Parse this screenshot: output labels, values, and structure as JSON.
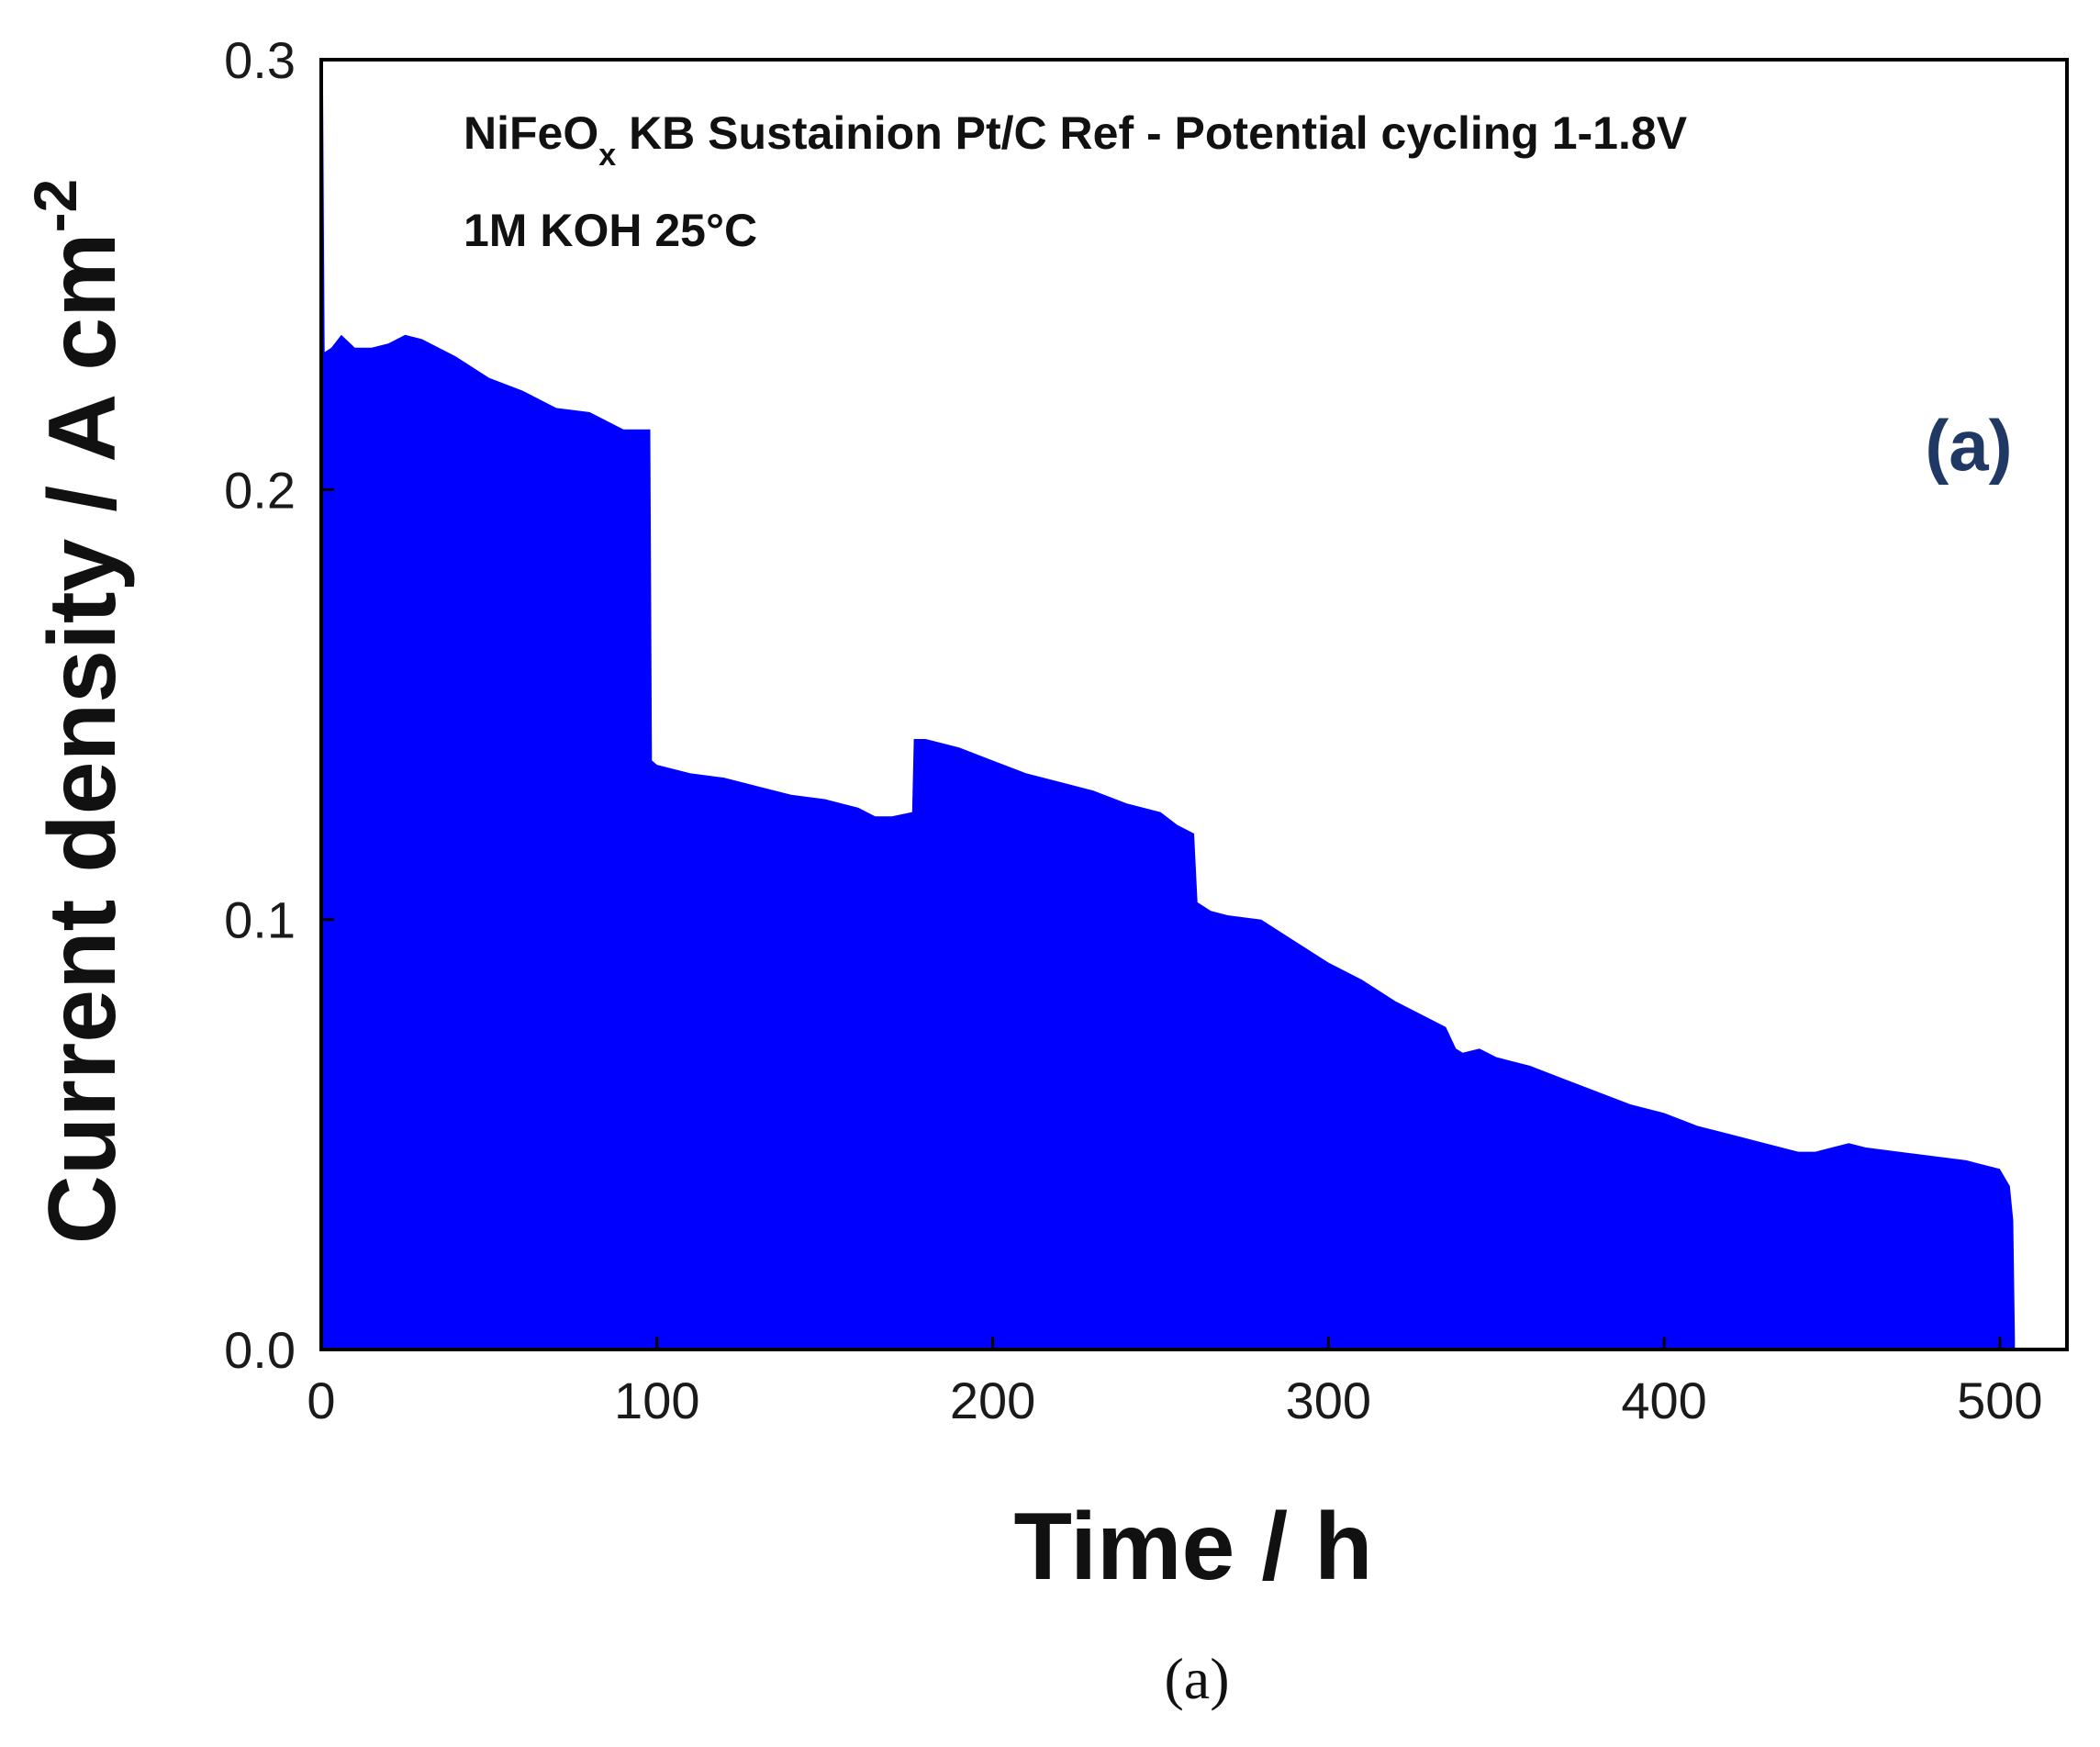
{
  "chart_data": {
    "type": "area",
    "annotation_line1_main": "NiFeO",
    "annotation_line1_sub": "x",
    "annotation_line1_rest": " KB Sustainion Pt/C Ref - Potential cycling 1-1.8V",
    "annotation_line2": "1M KOH 25°C",
    "panel_label": "(a)",
    "caption": "(a)",
    "xlabel": "Time / h",
    "ylabel_main": "Current density / A cm",
    "ylabel_sup": "-2",
    "xlim": [
      0,
      520
    ],
    "ylim": [
      0,
      0.3
    ],
    "x_ticks": [
      "0",
      "100",
      "200",
      "300",
      "400",
      "500"
    ],
    "x_tick_values": [
      0,
      100,
      200,
      300,
      400,
      500
    ],
    "y_ticks": [
      "0.0",
      "0.1",
      "0.2",
      "0.3"
    ],
    "y_tick_values": [
      0,
      0.1,
      0.2,
      0.3
    ],
    "grid": false,
    "colors": {
      "series": "#0000ff",
      "axis": "#000000"
    },
    "series": [
      {
        "x": [
          0,
          0.5,
          1,
          3,
          6,
          10,
          15,
          20,
          25,
          30,
          40,
          50,
          60,
          70,
          80,
          90,
          98,
          98.5,
          100,
          110,
          120,
          130,
          140,
          150,
          160,
          165,
          170,
          176,
          176.5,
          180,
          190,
          200,
          210,
          220,
          230,
          240,
          250,
          255,
          260,
          261,
          265,
          270,
          280,
          290,
          300,
          310,
          320,
          330,
          335,
          338,
          340,
          345,
          350,
          360,
          370,
          380,
          390,
          400,
          410,
          420,
          430,
          440,
          445,
          450,
          455,
          460,
          470,
          480,
          490,
          495,
          500,
          503,
          504,
          504.5
        ],
        "y": [
          0.23,
          0.3,
          0.232,
          0.233,
          0.236,
          0.233,
          0.233,
          0.234,
          0.236,
          0.235,
          0.231,
          0.226,
          0.223,
          0.219,
          0.218,
          0.214,
          0.214,
          0.137,
          0.136,
          0.134,
          0.133,
          0.131,
          0.129,
          0.128,
          0.126,
          0.124,
          0.124,
          0.125,
          0.142,
          0.142,
          0.14,
          0.137,
          0.134,
          0.132,
          0.13,
          0.127,
          0.125,
          0.122,
          0.12,
          0.104,
          0.102,
          0.101,
          0.1,
          0.095,
          0.09,
          0.086,
          0.081,
          0.077,
          0.075,
          0.07,
          0.069,
          0.07,
          0.068,
          0.066,
          0.063,
          0.06,
          0.057,
          0.055,
          0.052,
          0.05,
          0.048,
          0.046,
          0.046,
          0.047,
          0.048,
          0.047,
          0.046,
          0.045,
          0.044,
          0.043,
          0.042,
          0.038,
          0.03,
          0.002
        ]
      }
    ]
  }
}
